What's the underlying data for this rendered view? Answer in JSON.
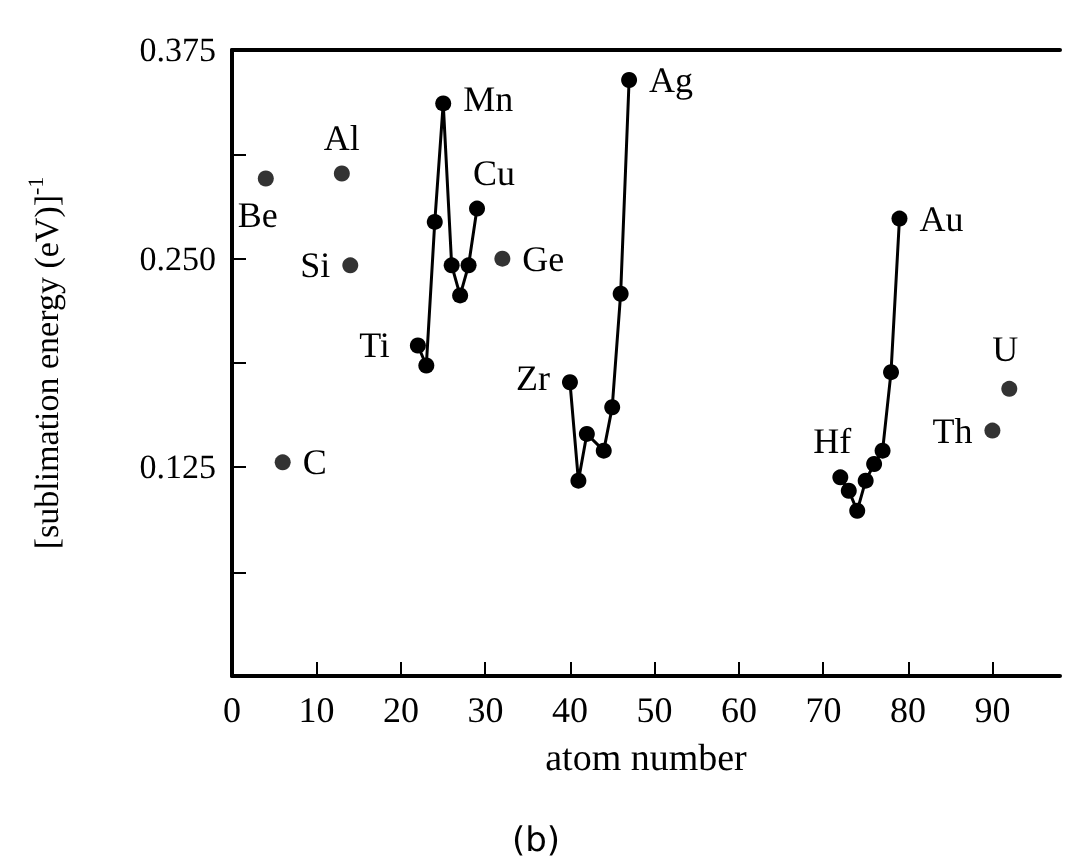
{
  "chart_data": {
    "type": "scatter",
    "xlabel": "atom number",
    "ylabel": "[sublimation energy (eV)]$^{-1}$",
    "xlim": [
      0,
      98
    ],
    "xticks": [
      0,
      10,
      20,
      30,
      40,
      50,
      60,
      70,
      80,
      90
    ],
    "ylim": [
      0,
      0.375
    ],
    "yticks": [
      {
        "value": 0.0625,
        "label": null
      },
      0.125,
      {
        "value": 0.1875,
        "label": null
      },
      {
        "value": 0.25,
        "label": "0.250"
      },
      {
        "value": 0.3125,
        "label": null
      },
      0.375
    ],
    "marker": "circle",
    "grid": false,
    "series": [
      {
        "color": "#000000",
        "x": [
          4,
          6,
          13,
          14,
          32,
          90,
          92
        ],
        "values": [
          0.298,
          0.128,
          0.301,
          0.246,
          0.25,
          0.147,
          0.172
        ]
      },
      {
        "type": "line",
        "color": "#000000",
        "x": [
          22,
          23,
          24,
          25,
          26,
          27,
          28,
          29
        ],
        "values": [
          0.198,
          0.186,
          0.272,
          0.343,
          0.246,
          0.228,
          0.246,
          0.28
        ]
      },
      {
        "type": "line",
        "color": "#000000",
        "x": [
          40,
          41,
          42,
          44,
          45,
          46,
          47
        ],
        "values": [
          0.176,
          0.117,
          0.145,
          0.135,
          0.161,
          0.229,
          0.357
        ]
      },
      {
        "type": "line",
        "color": "#000000",
        "x": [
          72,
          73,
          74,
          75,
          76,
          77,
          78,
          79
        ],
        "values": [
          0.119,
          0.111,
          0.099,
          0.117,
          0.127,
          0.135,
          0.182,
          0.274
        ]
      }
    ],
    "annotations": [
      {
        "text": "Be",
        "x": 4,
        "y": 0.298
      },
      {
        "text": "C",
        "x": 6,
        "y": 0.128
      },
      {
        "text": "Al",
        "x": 13,
        "y": 0.301
      },
      {
        "text": "Si",
        "x": 14,
        "y": 0.246
      },
      {
        "text": "Ti",
        "x": 22,
        "y": 0.198
      },
      {
        "text": "Mn",
        "x": 25,
        "y": 0.343
      },
      {
        "text": "Cu",
        "x": 29,
        "y": 0.28
      },
      {
        "text": "Ge",
        "x": 32,
        "y": 0.25
      },
      {
        "text": "Zr",
        "x": 40,
        "y": 0.176
      },
      {
        "text": "Ag",
        "x": 47,
        "y": 0.357
      },
      {
        "text": "Hf",
        "x": 72,
        "y": 0.119
      },
      {
        "text": "Au",
        "x": 79,
        "y": 0.274
      },
      {
        "text": "Th",
        "x": 90,
        "y": 0.147
      },
      {
        "text": "U",
        "x": 92,
        "y": 0.172
      },
      "(b)"
    ]
  }
}
